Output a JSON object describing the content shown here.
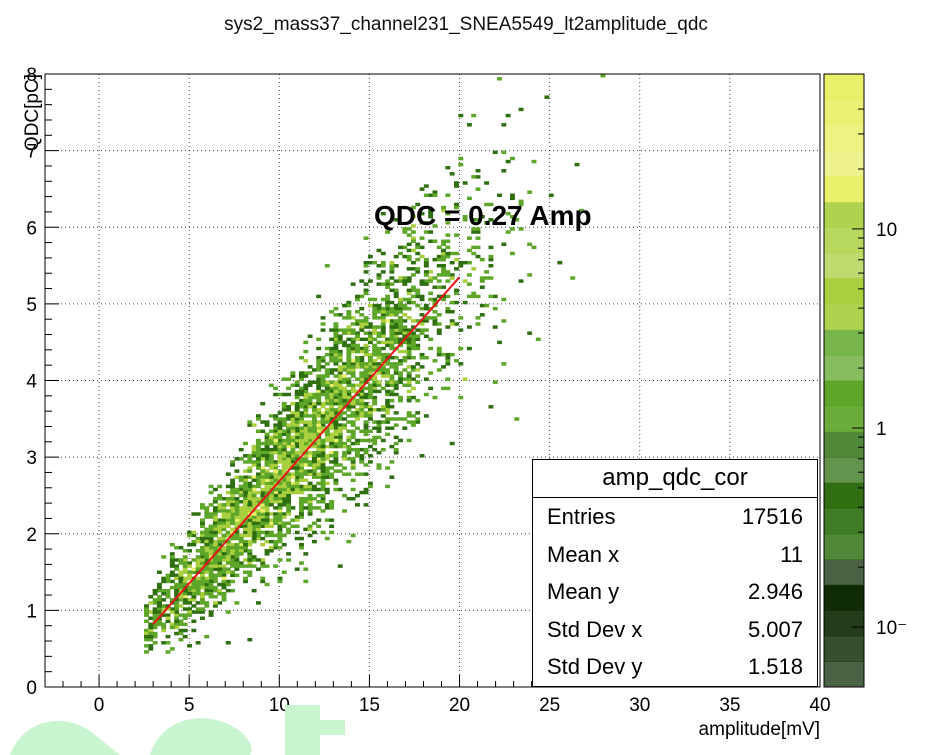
{
  "chart_data": {
    "type": "heatmap",
    "title": "sys2_mass37_channel231_SNEA5549_lt2amplitude_qdc",
    "xlabel": "amplitude[mV]",
    "ylabel": "QDC[pC]",
    "xlim": [
      -3,
      40
    ],
    "ylim": [
      0,
      8
    ],
    "x_ticks": [
      "0",
      "5",
      "10",
      "15",
      "20",
      "25",
      "30",
      "35",
      "40"
    ],
    "y_ticks": [
      "0",
      "1",
      "2",
      "3",
      "4",
      "5",
      "6",
      "7",
      "8"
    ],
    "grid": true,
    "colorbar": {
      "scale": "log",
      "labels": [
        "10",
        "1",
        "10⁻"
      ],
      "colors": [
        "#0f2c05",
        "#2f6f12",
        "#5ea62a",
        "#a9cf3f",
        "#e9ef69"
      ]
    },
    "fit_line": {
      "x": [
        3,
        20
      ],
      "y": [
        0.82,
        5.35
      ],
      "color": "#e8141a"
    },
    "annotation": "QDC =  0.27 Amp",
    "stats": {
      "title": "amp_qdc_cor",
      "rows": [
        {
          "label": "Entries",
          "value": "17516"
        },
        {
          "label": "Mean x",
          "value": "11"
        },
        {
          "label": "Mean y",
          "value": "2.946"
        },
        {
          "label": "Std Dev x",
          "value": "5.007"
        },
        {
          "label": "Std Dev y",
          "value": "1.518"
        }
      ]
    },
    "distribution": {
      "entries": 17516,
      "mean_x": 11,
      "mean_y": 2.946,
      "std_x": 5.007,
      "std_y": 1.518,
      "slope": 0.27
    }
  },
  "watermark_color": "#c8f5cf"
}
